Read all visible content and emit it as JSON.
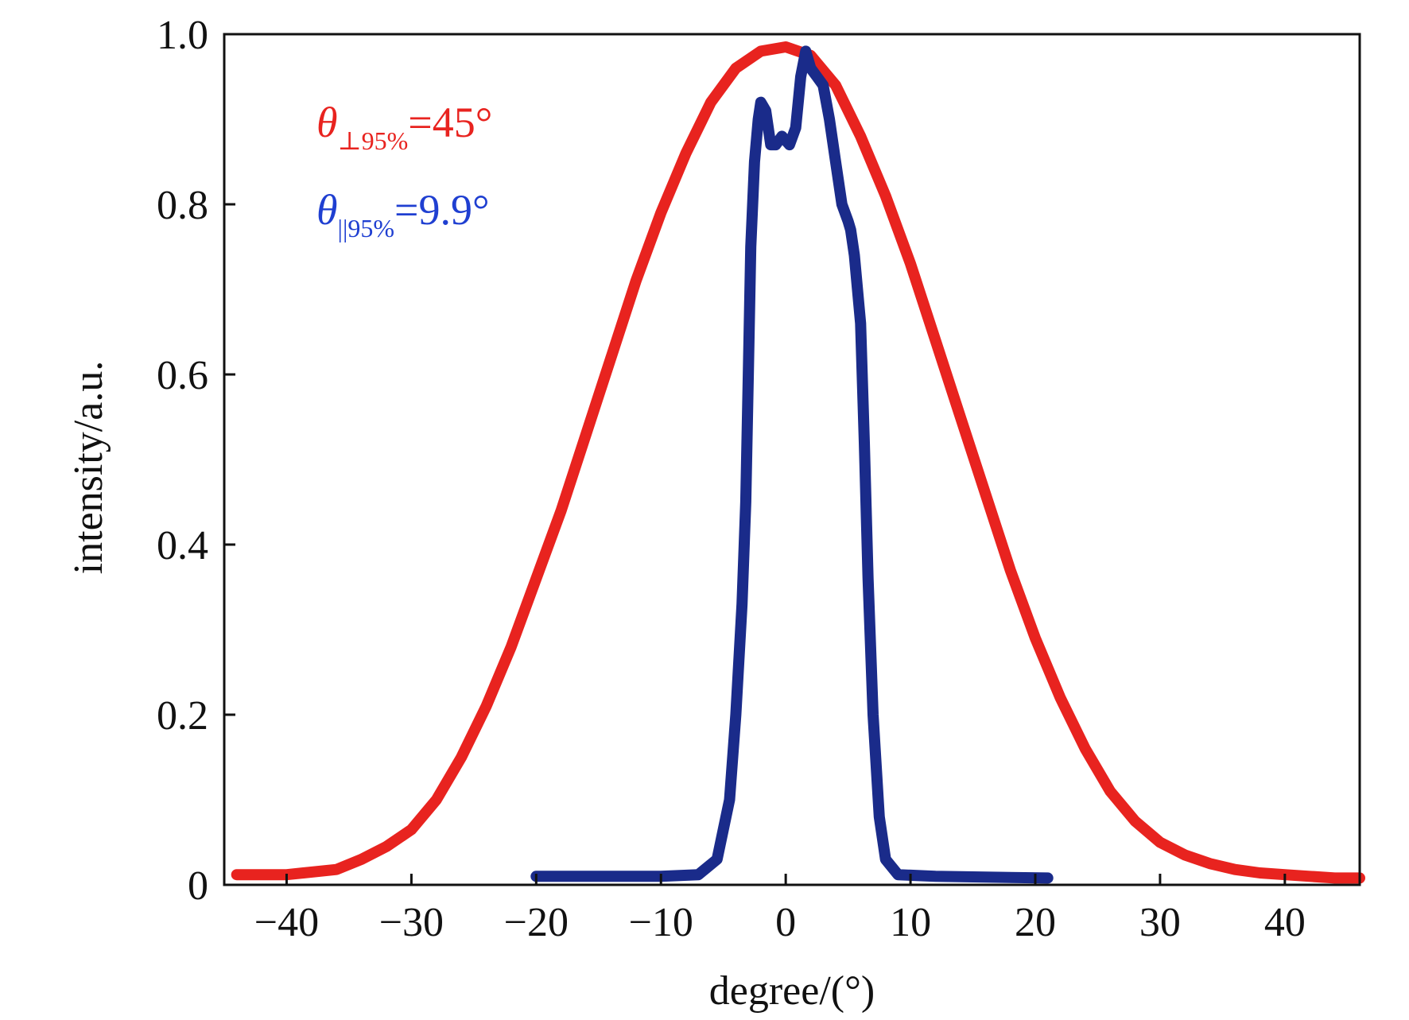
{
  "chart_data": {
    "type": "line",
    "xlabel": "degree/(°)",
    "ylabel": "intensity/a.u.",
    "xlim": [
      -45,
      46
    ],
    "ylim": [
      0,
      1.0
    ],
    "x_ticks": [
      -40,
      -30,
      -20,
      -10,
      0,
      10,
      20,
      30,
      40
    ],
    "x_tick_labels": [
      "−40",
      "−30",
      "−20",
      "−10",
      "0",
      "10",
      "20",
      "30",
      "40"
    ],
    "y_ticks": [
      0,
      0.2,
      0.4,
      0.6,
      0.8,
      1.0
    ],
    "y_tick_labels": [
      "0",
      "0.2",
      "0.4",
      "0.6",
      "0.8",
      "1.0"
    ],
    "grid": false,
    "series": [
      {
        "color": "#e8231f",
        "x": [
          -44,
          -40,
          -36,
          -34,
          -32,
          -30,
          -28,
          -26,
          -24,
          -22,
          -20,
          -18,
          -16,
          -14,
          -12,
          -10,
          -8,
          -6,
          -4,
          -2,
          0,
          2,
          4,
          6,
          8,
          10,
          12,
          14,
          16,
          18,
          20,
          22,
          24,
          26,
          28,
          30,
          32,
          34,
          36,
          38,
          40,
          42,
          44,
          46
        ],
        "y": [
          0.012,
          0.012,
          0.018,
          0.03,
          0.045,
          0.065,
          0.1,
          0.15,
          0.21,
          0.28,
          0.36,
          0.44,
          0.53,
          0.62,
          0.71,
          0.79,
          0.86,
          0.92,
          0.96,
          0.98,
          0.985,
          0.975,
          0.94,
          0.88,
          0.81,
          0.73,
          0.64,
          0.55,
          0.46,
          0.37,
          0.29,
          0.22,
          0.16,
          0.11,
          0.075,
          0.05,
          0.035,
          0.025,
          0.018,
          0.014,
          0.012,
          0.01,
          0.008,
          0.008
        ]
      },
      {
        "color": "#1a2b8a",
        "x": [
          -20,
          -10,
          -7,
          -5.5,
          -4.5,
          -4,
          -3.5,
          -3.2,
          -3,
          -2.8,
          -2.5,
          -2.2,
          -2,
          -1.6,
          -1.2,
          -0.8,
          -0.3,
          0.3,
          0.8,
          1.2,
          1.6,
          2,
          2.5,
          3,
          3.5,
          4,
          4.5,
          5,
          5.2,
          5.5,
          6,
          6.3,
          6.6,
          7,
          7.5,
          8,
          9,
          12,
          21
        ],
        "y": [
          0.01,
          0.01,
          0.012,
          0.03,
          0.1,
          0.2,
          0.33,
          0.45,
          0.6,
          0.75,
          0.85,
          0.9,
          0.92,
          0.91,
          0.87,
          0.87,
          0.88,
          0.87,
          0.89,
          0.95,
          0.98,
          0.96,
          0.95,
          0.94,
          0.9,
          0.85,
          0.8,
          0.78,
          0.77,
          0.74,
          0.66,
          0.52,
          0.36,
          0.2,
          0.08,
          0.03,
          0.012,
          0.01,
          0.008
        ]
      }
    ],
    "annotations": [
      {
        "prefix": "θ",
        "subscript": "⊥95%",
        "suffix": "=45°",
        "color": "#e8231f"
      },
      {
        "prefix": "θ",
        "subscript": "||95%",
        "suffix": "=9.9°",
        "color": "#1f3fd1"
      }
    ]
  }
}
